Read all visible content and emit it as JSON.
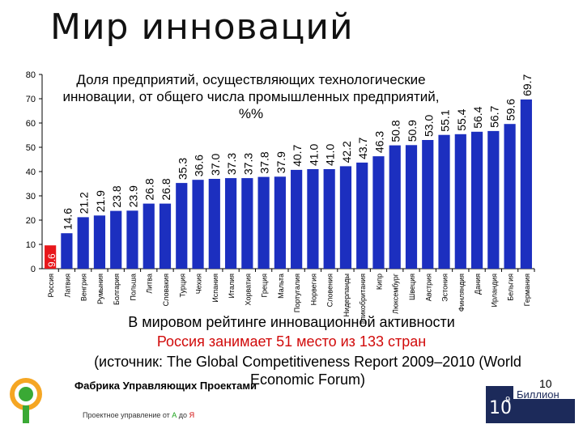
{
  "title": "Мир инноваций",
  "subtitle": "Доля предприятий, осуществляющих технологические инновации, от общего числа промышленных предприятий, %%",
  "footer": {
    "line1": "В мировом рейтинге инновационной активности",
    "line2": "Россия занимает 51 место из 133 стран",
    "line3": "(источник: The Global Competitiveness Report 2009–2010 (World Economic Forum)",
    "brand": "Фабрика Управляющих Проектами",
    "tagline_pre": "Проектное управление от ",
    "tagline_a": "А",
    "tagline_mid": " до ",
    "tagline_ya": "Я",
    "logo_right_text": "Биллион",
    "page_number": "10"
  },
  "colors": {
    "highlight": "#e8171b",
    "bar": "#1c2fbf",
    "text": "#000000"
  },
  "chart_data": {
    "type": "bar",
    "title": "Доля предприятий, осуществляющих технологические инновации, от общего числа промышленных предприятий, %%",
    "categories": [
      "Россия",
      "Латвия",
      "Венгрия",
      "Румыния",
      "Болгария",
      "Польша",
      "Литва",
      "Словакия",
      "Турция",
      "Чехия",
      "Испания",
      "Италия",
      "Хорватия",
      "Греция",
      "Мальта",
      "Португалия",
      "Норвегия",
      "Словения",
      "Нидерланды",
      "Великобритания",
      "Кипр",
      "Люксембург",
      "Швеция",
      "Австрия",
      "Эстония",
      "Финляндия",
      "Дания",
      "Ирландия",
      "Бельгия",
      "Германия"
    ],
    "values": [
      9.6,
      14.6,
      21.2,
      21.9,
      23.8,
      23.9,
      26.8,
      26.8,
      35.3,
      36.6,
      37.0,
      37.3,
      37.3,
      37.8,
      37.9,
      40.7,
      41.0,
      41.0,
      42.2,
      43.7,
      46.3,
      50.8,
      50.9,
      53.0,
      55.1,
      55.4,
      56.4,
      56.7,
      59.6,
      69.7
    ],
    "value_labels": [
      "9.6",
      "14.6",
      "21.2",
      "21.9",
      "23.8",
      "23.9",
      "26.8",
      "26.8",
      "35.3",
      "36.6",
      "37.0",
      "37.3",
      "37.3",
      "37.8",
      "37.9",
      "40.7",
      "41.0",
      "41.0",
      "42.2",
      "43.7",
      "46.3",
      "50.8",
      "50.9",
      "53.0",
      "55.1",
      "55.4",
      "56.4",
      "56.7",
      "59.6",
      "69.7"
    ],
    "highlight_index": 0,
    "y_ticks": [
      "0",
      "10",
      "20",
      "30",
      "40",
      "50",
      "60",
      "70",
      "80"
    ],
    "ylim": [
      0,
      80
    ],
    "grid": false,
    "legend": "none"
  }
}
